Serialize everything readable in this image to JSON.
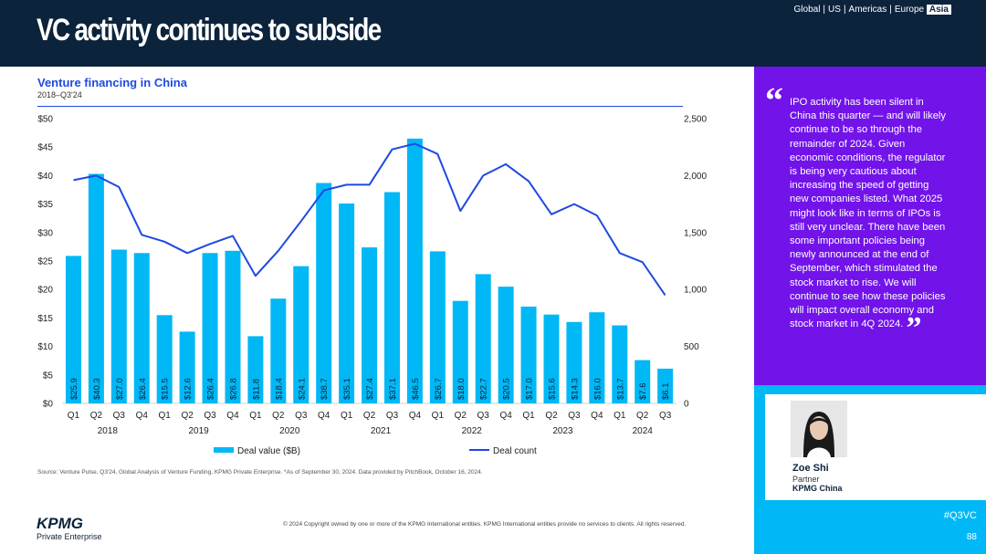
{
  "header": {
    "title": "VC activity continues to subside",
    "regions": [
      "Global",
      "US",
      "Americas",
      "Europe"
    ],
    "active_region": "Asia"
  },
  "chart_data": {
    "type": "bar+line",
    "title": "Venture financing in China",
    "subtitle": "2018–Q3'24",
    "quarters": [
      "Q1",
      "Q2",
      "Q3",
      "Q4",
      "Q1",
      "Q2",
      "Q3",
      "Q4",
      "Q1",
      "Q2",
      "Q3",
      "Q4",
      "Q1",
      "Q2",
      "Q3",
      "Q4",
      "Q1",
      "Q2",
      "Q3",
      "Q4",
      "Q1",
      "Q2",
      "Q3",
      "Q4",
      "Q1",
      "Q2",
      "Q3"
    ],
    "years": [
      "2018",
      "2019",
      "2020",
      "2021",
      "2022",
      "2023",
      "2024"
    ],
    "bar_series": {
      "name": "Deal value ($B)",
      "values": [
        25.9,
        40.3,
        27.0,
        26.4,
        15.5,
        12.6,
        26.4,
        26.8,
        11.8,
        18.4,
        24.1,
        38.7,
        35.1,
        27.4,
        37.1,
        46.5,
        26.7,
        18.0,
        22.7,
        20.5,
        17.0,
        15.6,
        14.3,
        16.0,
        13.7,
        7.6,
        6.1
      ],
      "labels": [
        "$25.9",
        "$40.3",
        "$27.0",
        "$26.4",
        "$15.5",
        "$12.6",
        "$26.4",
        "$26.8",
        "$11.8",
        "$18.4",
        "$24.1",
        "$38.7",
        "$35.1",
        "$27.4",
        "$37.1",
        "$46.5",
        "$26.7",
        "$18.0",
        "$22.7",
        "$20.5",
        "$17.0",
        "$15.6",
        "$14.3",
        "$16.0",
        "$13.7",
        "$7.6",
        "$6.1"
      ],
      "color": "#00b8f5"
    },
    "line_series": {
      "name": "Deal count",
      "values": [
        1960,
        2000,
        1900,
        1480,
        1420,
        1320,
        1400,
        1470,
        1120,
        1340,
        1600,
        1870,
        1920,
        1920,
        2230,
        2280,
        2190,
        1690,
        2000,
        2100,
        1950,
        1660,
        1750,
        1650,
        1320,
        1240,
        950
      ],
      "color": "#1e49e2"
    },
    "y_left": {
      "min": 0,
      "max": 50,
      "ticks": [
        "$0",
        "$5",
        "$10",
        "$15",
        "$20",
        "$25",
        "$30",
        "$35",
        "$40",
        "$45",
        "$50"
      ]
    },
    "y_right": {
      "min": 0,
      "max": 2500,
      "ticks": [
        "0",
        "500",
        "1,000",
        "1,500",
        "2,000",
        "2,500"
      ]
    }
  },
  "source_note": "Source: Venture Pulse, Q3'24, Global Analysis of Venture Funding, KPMG Private Enterprise. *As of September 30, 2024. Data provided by PitchBook, October 16, 2024.",
  "copyright": "© 2024 Copyright owned by one or more of the KPMG International entities. KPMG International entities provide no services to clients. All rights reserved.",
  "logo": {
    "brand": "KPMG",
    "sub": "Private Enterprise"
  },
  "quote": {
    "open_mark": "“",
    "text": "IPO activity has been silent in China this quarter — and will likely continue to be so through the remainder of 2024. Given economic conditions, the regulator is being very cautious about increasing the speed of getting new companies listed. What 2025 might look like in terms of IPOs is still very unclear. There have been some important policies being newly announced at the end of September, which stimulated the stock market to rise. We will continue to see how these policies will impact overall economy and stock market in 4Q 2024.",
    "close_mark": "”"
  },
  "person": {
    "name": "Zoe Shi",
    "role": "Partner",
    "org": "KPMG China"
  },
  "hashtag": "#Q3VC",
  "page_number": "88",
  "colors": {
    "navy": "#0c233c",
    "blue": "#1e49e2",
    "cyan": "#00b8f5",
    "purple": "#7213ea"
  }
}
